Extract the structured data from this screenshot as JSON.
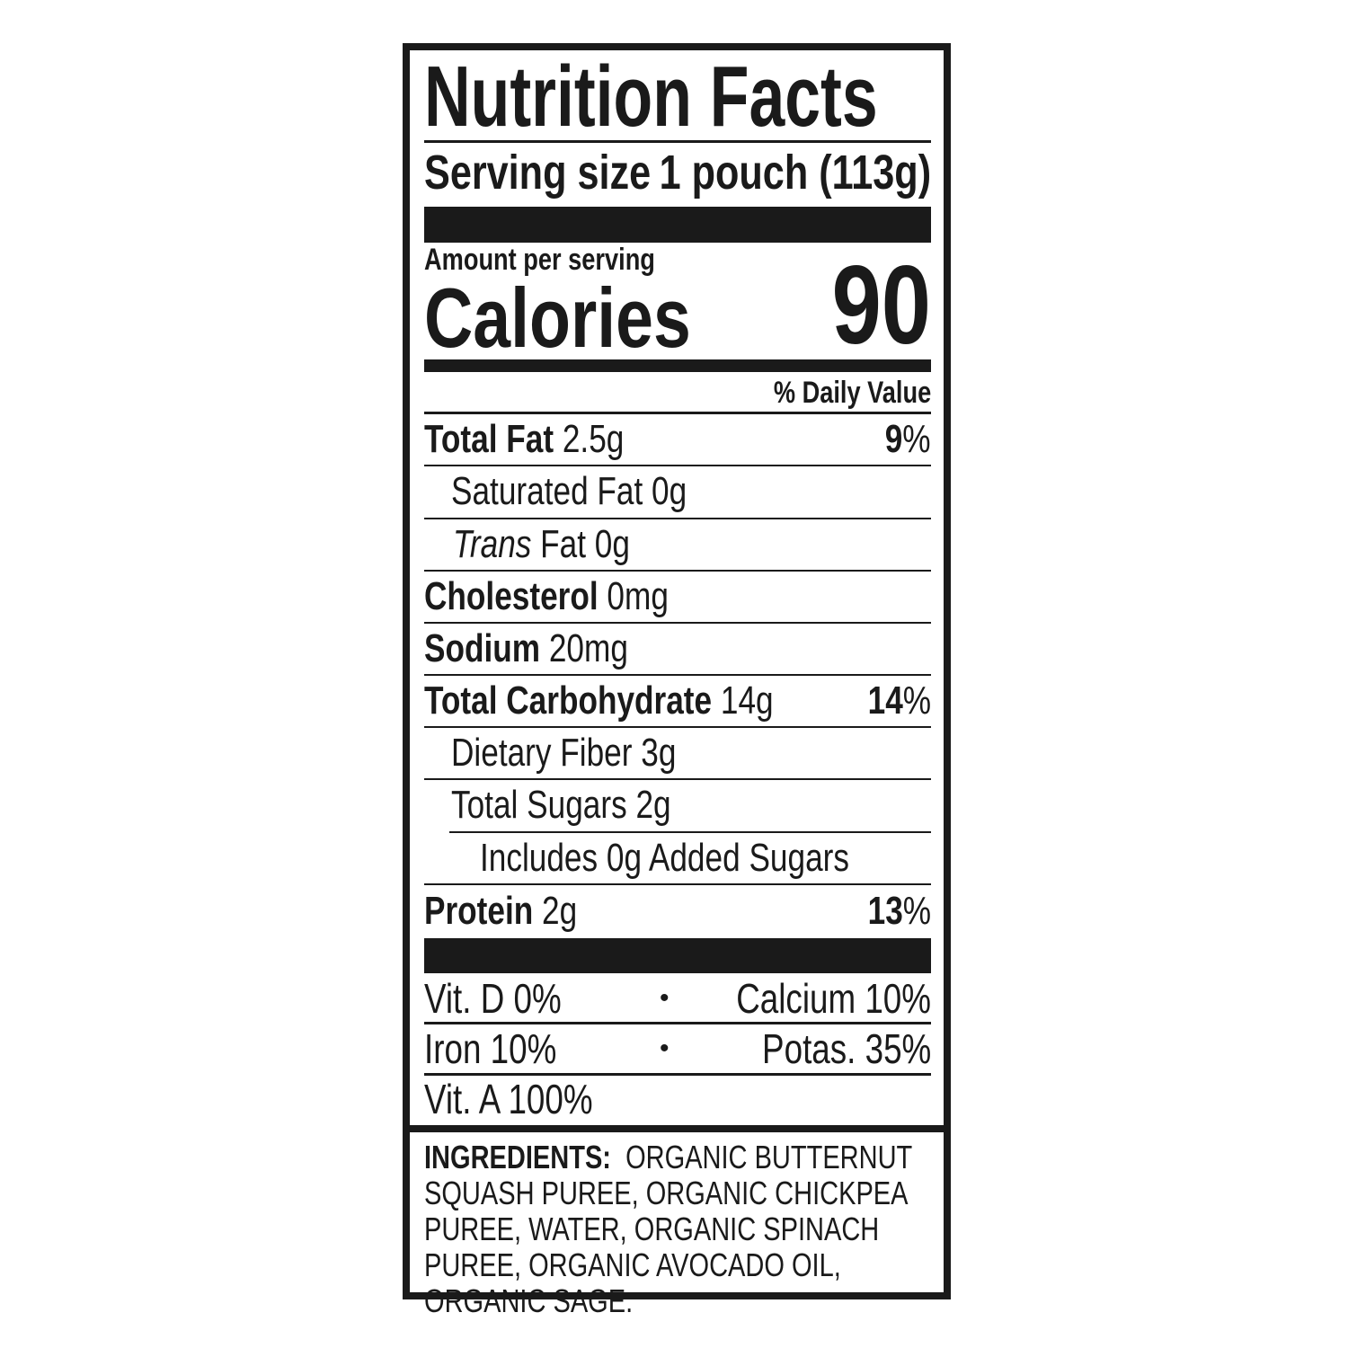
{
  "title": "Nutrition Facts",
  "serving": {
    "label": "Serving size",
    "value": "1 pouch (113g)"
  },
  "amount_per_serving": "Amount per serving",
  "calories": {
    "label": "Calories",
    "value": "90"
  },
  "daily_value_header": "% Daily Value",
  "nutrients": [
    {
      "label": "Total Fat",
      "amount": "2.5g",
      "dv": "9",
      "pct": "%"
    },
    {
      "label": "Saturated Fat 0g"
    },
    {
      "label_italic": "Trans",
      "label": "Fat 0g"
    },
    {
      "label": "Cholesterol",
      "amount": "0mg"
    },
    {
      "label": "Sodium",
      "amount": "20mg"
    },
    {
      "label": "Total Carbohydrate",
      "amount": "14g",
      "dv": "14",
      "pct": "%"
    },
    {
      "label": "Dietary Fiber 3g"
    },
    {
      "label": "Total Sugars 2g"
    },
    {
      "label": "Includes 0g Added Sugars"
    },
    {
      "label": "Protein",
      "amount": "2g",
      "dv": "13",
      "pct": "%"
    }
  ],
  "vitamins": [
    {
      "left": "Vit. D 0%",
      "sep": "•",
      "right": "Calcium 10%"
    },
    {
      "left": "Iron 10%",
      "sep": "•",
      "right": "Potas. 35%"
    },
    {
      "left": "Vit. A 100%"
    }
  ],
  "ingredients": {
    "label": "INGREDIENTS:",
    "text": "ORGANIC BUTTERNUT SQUASH PUREE, ORGANIC CHICKPEA PUREE, WATER, ORGANIC SPINACH PUREE, ORGANIC AVOCADO OIL, ORGANIC SAGE."
  }
}
